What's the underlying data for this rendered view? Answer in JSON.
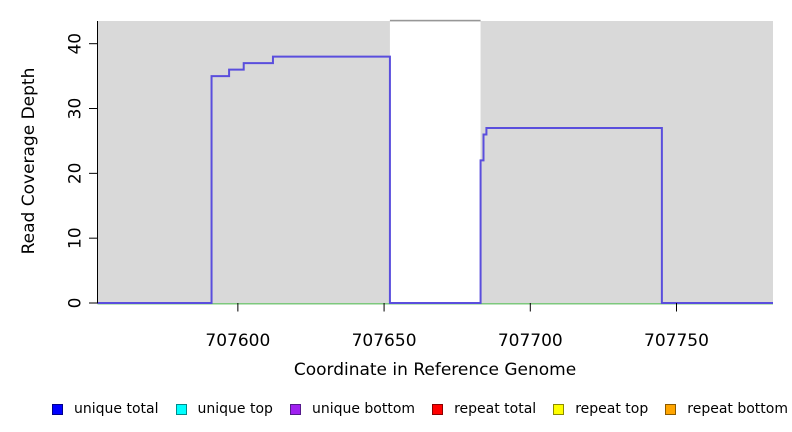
{
  "chart_data": {
    "type": "line",
    "subtype": "step-coverage",
    "title": "",
    "xlabel": "Coordinate in Reference Genome",
    "ylabel": "Read Coverage Depth",
    "xlim": [
      707552,
      707783
    ],
    "ylim": [
      0,
      43.5
    ],
    "x_ticks": [
      707600,
      707650,
      707700,
      707750
    ],
    "y_ticks": [
      0,
      10,
      20,
      30,
      40
    ],
    "grid": false,
    "plot_background": "#ffffff",
    "shaded_regions": [
      {
        "name": "covered-block-1",
        "start": 707552,
        "end": 707652,
        "fill": "#d9d9d9"
      },
      {
        "name": "covered-block-2",
        "start": 707683,
        "end": 707783,
        "fill": "#d9d9d9"
      }
    ],
    "gap_region": {
      "start": 707652,
      "end": 707683,
      "fill": "#ffffff",
      "top_border_color": "#979797"
    },
    "zero_line": {
      "name": "baseline-zero-line",
      "color": "#7dc87d",
      "width": 1.5
    },
    "series": [
      {
        "name": "unique total",
        "color": "#5a4edd",
        "width": 2,
        "steps": [
          [
            707552,
            0
          ],
          [
            707591,
            35
          ],
          [
            707597,
            36
          ],
          [
            707602,
            37
          ],
          [
            707612,
            38
          ],
          [
            707652,
            0
          ],
          [
            707683,
            22
          ],
          [
            707684,
            26
          ],
          [
            707685,
            27
          ],
          [
            707745,
            0
          ],
          [
            707783,
            0
          ]
        ]
      }
    ],
    "axis_color": "#000000",
    "tick_label_font_px": 17
  },
  "legend": {
    "items": [
      {
        "label": "unique total",
        "fill": "#0000ff",
        "border": "#00008b"
      },
      {
        "label": "unique top",
        "fill": "#00ffff",
        "border": "#008b8b"
      },
      {
        "label": "unique bottom",
        "fill": "#a020f0",
        "border": "#551a8b"
      },
      {
        "label": "repeat total",
        "fill": "#ff0000",
        "border": "#8b0000"
      },
      {
        "label": "repeat top",
        "fill": "#ffff00",
        "border": "#8b8b00"
      },
      {
        "label": "repeat bottom",
        "fill": "#ffa500",
        "border": "#8b5a00"
      }
    ]
  }
}
